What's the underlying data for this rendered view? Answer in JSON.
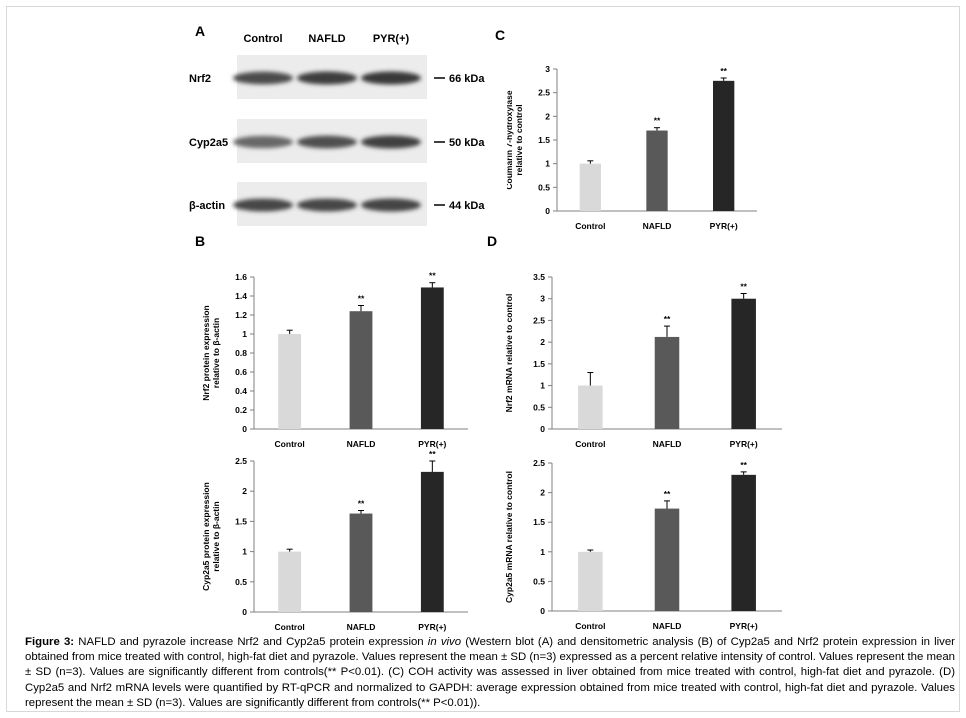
{
  "panels": {
    "A": "A",
    "B": "B",
    "C": "C",
    "D": "D"
  },
  "western_blot": {
    "lanes": [
      "Control",
      "NAFLD",
      "PYR(+)"
    ],
    "rows": [
      {
        "protein": "Nrf2",
        "size": "66 kDa",
        "intensities": [
          0.75,
          0.85,
          0.88
        ]
      },
      {
        "protein": "Cyp2a5",
        "size": "50 kDa",
        "intensities": [
          0.55,
          0.72,
          0.82
        ]
      },
      {
        "protein": "β-actin",
        "size": "44 kDa",
        "intensities": [
          0.78,
          0.78,
          0.8
        ]
      }
    ]
  },
  "chart_data": [
    {
      "id": "C",
      "type": "bar",
      "categories": [
        "Control",
        "NAFLD",
        "PYR(+)"
      ],
      "values": [
        1.0,
        1.7,
        2.75
      ],
      "errors": [
        0.06,
        0.06,
        0.06
      ],
      "significance": [
        "",
        "**",
        "**"
      ],
      "ylabel_lines": [
        "Coumarin 7-hydroxylase",
        "relative to control"
      ],
      "ylim": [
        0,
        3
      ],
      "yticks": [
        "0",
        "0.5",
        "1",
        "1.5",
        "2",
        "2.5",
        "3"
      ],
      "colors": [
        "#d9d9d9",
        "#595959",
        "#262626"
      ]
    },
    {
      "id": "B1",
      "type": "bar",
      "categories": [
        "Control",
        "NAFLD",
        "PYR(+)"
      ],
      "values": [
        1.0,
        1.24,
        1.49
      ],
      "errors": [
        0.04,
        0.06,
        0.05
      ],
      "significance": [
        "",
        "**",
        "**"
      ],
      "ylabel_lines": [
        "Nrf2 protein expression",
        "relative to β-actin"
      ],
      "ylim": [
        0,
        1.6
      ],
      "yticks": [
        "0",
        "0.2",
        "0.4",
        "0.6",
        "0.8",
        "1",
        "1.2",
        "1.4",
        "1.6"
      ],
      "colors": [
        "#d9d9d9",
        "#595959",
        "#262626"
      ]
    },
    {
      "id": "B2",
      "type": "bar",
      "categories": [
        "Control",
        "NAFLD",
        "PYR(+)"
      ],
      "values": [
        1.0,
        1.63,
        2.32
      ],
      "errors": [
        0.04,
        0.05,
        0.18
      ],
      "significance": [
        "",
        "**",
        "**"
      ],
      "ylabel_lines": [
        "Cyp2a5 protein expression",
        "relative to β-actin"
      ],
      "ylim": [
        0,
        2.5
      ],
      "yticks": [
        "0",
        "0.5",
        "1",
        "1.5",
        "2",
        "2.5"
      ],
      "colors": [
        "#d9d9d9",
        "#595959",
        "#262626"
      ]
    },
    {
      "id": "D1",
      "type": "bar",
      "categories": [
        "Control",
        "NAFLD",
        "PYR(+)"
      ],
      "values": [
        1.0,
        2.12,
        3.0
      ],
      "errors": [
        0.3,
        0.25,
        0.12
      ],
      "significance": [
        "",
        "**",
        "**"
      ],
      "ylabel_lines": [
        "Nrf2 mRNA relative to control"
      ],
      "ylim": [
        0,
        3.5
      ],
      "yticks": [
        "0",
        "0.5",
        "1",
        "1.5",
        "2",
        "2.5",
        "3",
        "3.5"
      ],
      "colors": [
        "#d9d9d9",
        "#595959",
        "#262626"
      ]
    },
    {
      "id": "D2",
      "type": "bar",
      "categories": [
        "Control",
        "NAFLD",
        "PYR(+)"
      ],
      "values": [
        1.0,
        1.73,
        2.3
      ],
      "errors": [
        0.03,
        0.13,
        0.05
      ],
      "significance": [
        "",
        "**",
        "**"
      ],
      "ylabel_lines": [
        "Cyp2a5 mRNA relative to control"
      ],
      "ylim": [
        0,
        2.5
      ],
      "yticks": [
        "0",
        "0.5",
        "1",
        "1.5",
        "2",
        "2.5"
      ],
      "colors": [
        "#d9d9d9",
        "#595959",
        "#262626"
      ]
    }
  ],
  "caption": {
    "label": "Figure 3:",
    "part1": " NAFLD and pyrazole increase Nrf2 and Cyp2a5 protein expression ",
    "italic": "in vivo",
    "part2": " (Western blot (A) and densitometric analysis (B) of Cyp2a5 and Nrf2 protein expression in liver obtained from mice treated with control, high-fat diet and pyrazole. Values represent the mean ± SD (n=3) expressed as a percent relative intensity of control. Values represent the mean ± SD (n=3). Values are significantly different from controls(** P<0.01). (C) COH activity was assessed in liver obtained from mice treated with control, high-fat diet and pyrazole. (D) Cyp2a5 and Nrf2 mRNA levels were quantified by RT-qPCR and normalized to GAPDH: average expression obtained from mice treated with control, high-fat diet and pyrazole. Values represent the mean ± SD (n=3). Values are significantly different from controls(** P<0.01))."
  }
}
